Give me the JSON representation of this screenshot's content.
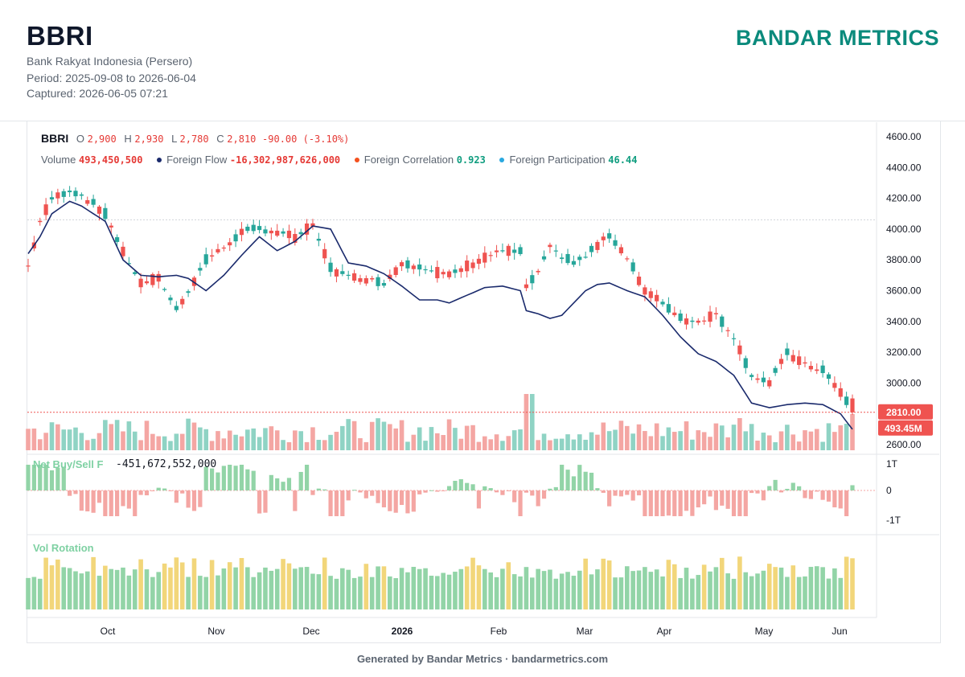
{
  "header": {
    "ticker": "BBRI",
    "company": "Bank Rakyat Indonesia (Persero)",
    "period": "Period: 2025-09-08 to 2026-06-04",
    "captured": "Captured: 2026-06-05 07:21",
    "brand": "BANDAR METRICS"
  },
  "legend": {
    "symbol": "BBRI",
    "o_label": "O",
    "o_value": "2,900",
    "h_label": "H",
    "h_value": "2,930",
    "l_label": "L",
    "l_value": "2,780",
    "c_label": "C",
    "c_value": "2,810",
    "change": "-90.00 (-3.10%)",
    "volume_label": "Volume",
    "volume_value": "493,450,500",
    "flow_label": "Foreign Flow",
    "flow_value": "-16,302,987,626,000",
    "corr_label": "Foreign Correlation",
    "corr_value": "0.923",
    "part_label": "Foreign Participation",
    "part_value": "46.44",
    "net_label": "Net Buy/Sell F",
    "net_value": "-451,672,552,000",
    "rot_label": "Vol Rotation"
  },
  "colors": {
    "up": "#26a69a",
    "down": "#ef5350",
    "vol_up": "#8fd3c4",
    "vol_down": "#f4a6a3",
    "flow": "#1a2a6c",
    "rot_green": "#92d4a7",
    "rot_yellow": "#f2d67a"
  },
  "footer": "Generated by Bandar Metrics · bandarmetrics.com",
  "chart_data": {
    "type": "candlestick",
    "price_axis": {
      "ticks": [
        "4600.00",
        "4400.00",
        "4200.00",
        "4000.00",
        "3800.00",
        "3600.00",
        "3400.00",
        "3200.00",
        "3000.00",
        "2800.00",
        "2600.00"
      ],
      "min": 2600,
      "max": 4600
    },
    "last_price_label": "2810.00",
    "last_volume_label": "493.45M",
    "reference_price": 4060,
    "net_axis_ticks": [
      "1T",
      "0",
      "-1T"
    ],
    "x_labels": [
      "Oct",
      "Nov",
      "Dec",
      "2026",
      "Feb",
      "Mar",
      "Apr",
      "May",
      "Jun"
    ],
    "anchors": [
      [
        0,
        3760,
        3840,
        "m"
      ],
      [
        2,
        4050,
        3950,
        "m"
      ],
      [
        4,
        4200,
        4100,
        "m"
      ],
      [
        7,
        4250,
        4180,
        "m"
      ],
      [
        9,
        4220,
        4150,
        "m"
      ],
      [
        13,
        4100,
        4050,
        "m"
      ],
      [
        16,
        3850,
        3800,
        "m"
      ],
      [
        19,
        3650,
        3700,
        "m"
      ],
      [
        22,
        3680,
        3690,
        "m"
      ],
      [
        25,
        3480,
        3700,
        "m"
      ],
      [
        27,
        3600,
        3680,
        "m"
      ],
      [
        30,
        3800,
        3600,
        "m"
      ],
      [
        33,
        3880,
        3700,
        "m"
      ],
      [
        36,
        3980,
        3830,
        "m"
      ],
      [
        39,
        4000,
        3950,
        "m"
      ],
      [
        42,
        3980,
        3860,
        "m"
      ],
      [
        45,
        3950,
        3920,
        "m"
      ],
      [
        48,
        4020,
        4020,
        "m"
      ],
      [
        51,
        3750,
        4000,
        "m"
      ],
      [
        54,
        3690,
        3780,
        "m"
      ],
      [
        57,
        3680,
        3760,
        "m"
      ],
      [
        60,
        3650,
        3710,
        "m"
      ],
      [
        63,
        3780,
        3630,
        "m"
      ],
      [
        66,
        3760,
        3540,
        "m"
      ],
      [
        69,
        3720,
        3540,
        "m"
      ],
      [
        71,
        3700,
        3520,
        "m"
      ],
      [
        74,
        3760,
        3570,
        "m"
      ],
      [
        77,
        3820,
        3620,
        "m"
      ],
      [
        80,
        3860,
        3630,
        "m"
      ],
      [
        83,
        3850,
        3600,
        "m"
      ],
      [
        84,
        3620,
        3470,
        "m"
      ],
      [
        86,
        3720,
        3450,
        "m"
      ],
      [
        88,
        3880,
        3420,
        "m"
      ],
      [
        90,
        3820,
        3440,
        "m"
      ],
      [
        92,
        3780,
        3520,
        "m"
      ],
      [
        94,
        3820,
        3600,
        "m"
      ],
      [
        96,
        3900,
        3640,
        "m"
      ],
      [
        98,
        3960,
        3650,
        "m"
      ],
      [
        101,
        3820,
        3600,
        "m"
      ],
      [
        104,
        3600,
        3560,
        "m"
      ],
      [
        107,
        3520,
        3440,
        "m"
      ],
      [
        110,
        3420,
        3300,
        "m"
      ],
      [
        113,
        3400,
        3190,
        "m"
      ],
      [
        116,
        3450,
        3140,
        "m"
      ],
      [
        119,
        3300,
        3050,
        "m"
      ],
      [
        122,
        3050,
        2870,
        "m"
      ],
      [
        125,
        3000,
        2840,
        "m"
      ],
      [
        128,
        3200,
        2860,
        "m"
      ],
      [
        131,
        3120,
        2870,
        "m"
      ],
      [
        134,
        3080,
        2860,
        "m"
      ],
      [
        137,
        2940,
        2800,
        "m"
      ],
      [
        139,
        2810,
        2700,
        "m"
      ]
    ],
    "bars": 140
  }
}
